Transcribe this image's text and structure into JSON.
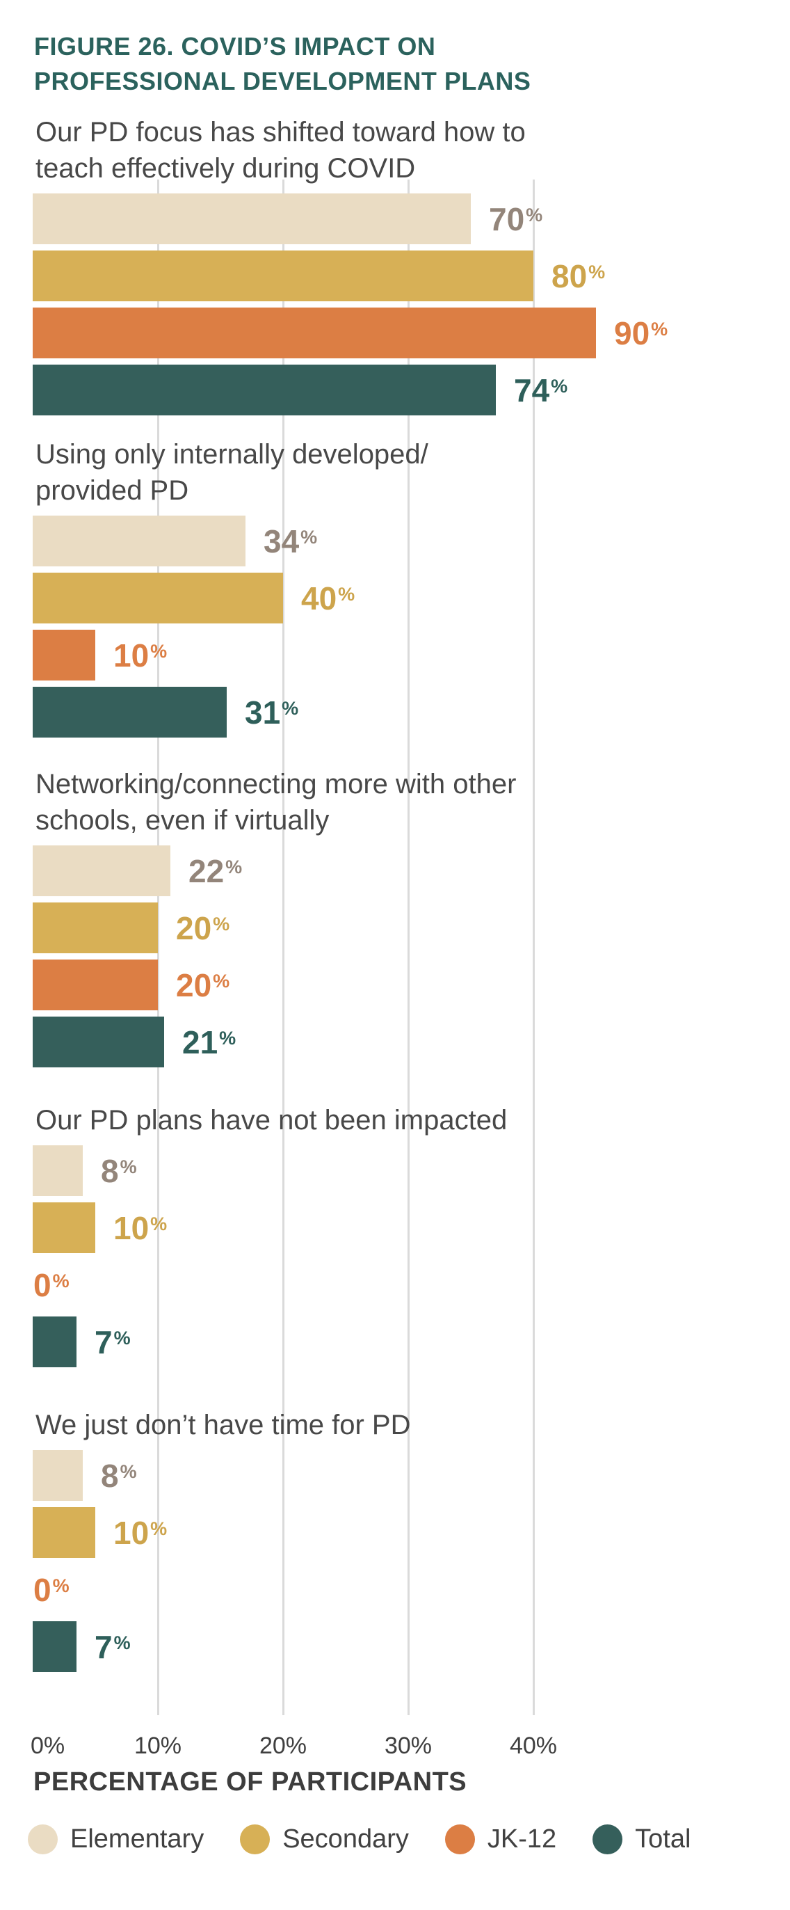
{
  "title": {
    "line1": "FIGURE 26. COVID’S IMPACT ON",
    "line2": "PROFESSIONAL DEVELOPMENT PLANS",
    "color": "#2B625D"
  },
  "chart_data": {
    "type": "bar",
    "orientation": "horizontal",
    "title": "FIGURE 26. COVID’S IMPACT ON PROFESSIONAL DEVELOPMENT PLANS",
    "xlabel": "PERCENTAGE OF PARTICIPANTS",
    "x_ticks": [
      "0%",
      "10%",
      "20%",
      "30%",
      "40%"
    ],
    "x_tick_percents": [
      0,
      10,
      20,
      30,
      40
    ],
    "xlim": [
      0,
      40
    ],
    "grid": true,
    "legend_position": "bottom",
    "value_suffix": "%",
    "series_names": [
      "Elementary",
      "Secondary",
      "JK-12",
      "Total"
    ],
    "categories": [
      "Our PD focus has shifted toward how to teach effectively during COVID",
      "Using only internally developed/provided PD",
      "Networking/connecting more with other schools, even if virtually",
      "Our PD plans have not been impacted",
      "We just don’t have time for PD"
    ],
    "groups": [
      {
        "label_lines": [
          "Our PD focus has shifted toward how to",
          "teach effectively during COVID"
        ],
        "values": [
          70,
          80,
          90,
          74
        ]
      },
      {
        "label_lines": [
          "Using only internally developed/",
          "provided PD"
        ],
        "values": [
          34,
          40,
          10,
          31
        ]
      },
      {
        "label_lines": [
          "Networking/connecting more with other",
          "schools, even if virtually"
        ],
        "values": [
          22,
          20,
          20,
          21
        ]
      },
      {
        "label_lines": [
          "Our PD plans have not been impacted"
        ],
        "values": [
          8,
          10,
          0,
          7
        ]
      },
      {
        "label_lines": [
          "We just don’t have time for PD"
        ],
        "values": [
          8,
          10,
          0,
          7
        ]
      }
    ]
  },
  "styles": {
    "bar_colors": [
      "#EADCC3",
      "#D7B056",
      "#DC7E44",
      "#355F5B"
    ],
    "value_label_colors": [
      "#93857A",
      "#CDA44C",
      "#DC7E44",
      "#2E5F5A"
    ],
    "gridline_color": "#DADADA",
    "category_label_color": "#484848",
    "tick_label_color": "#3F3F3F",
    "axis_title_color": "#3D3D3D",
    "legend_label_color": "#414141"
  },
  "legend": {
    "items": [
      {
        "label": "Elementary",
        "color": "#EADCC3"
      },
      {
        "label": "Secondary",
        "color": "#D7B056"
      },
      {
        "label": "JK-12",
        "color": "#DC7E44"
      },
      {
        "label": "Total",
        "color": "#355F5B"
      }
    ]
  }
}
